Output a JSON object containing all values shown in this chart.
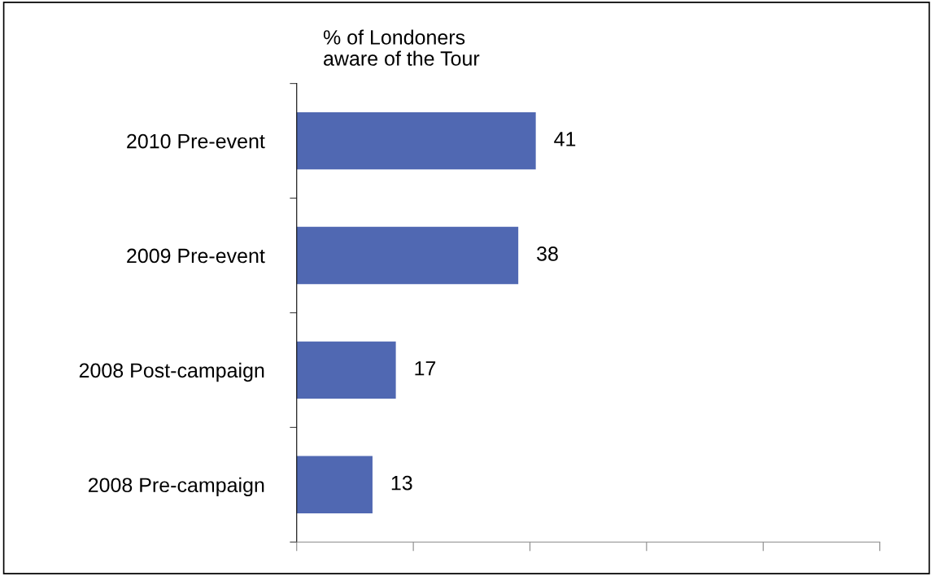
{
  "chart_data": {
    "type": "bar",
    "orientation": "horizontal",
    "title": "% of Londoners\naware of the Tour",
    "categories": [
      "2010 Pre-event",
      "2009 Pre-event",
      "2008 Post-campaign",
      "2008 Pre-campaign"
    ],
    "values": [
      41,
      38,
      17,
      13
    ],
    "color": "#5068b2",
    "data_labels": true,
    "xlim": [
      0,
      100
    ],
    "xticks": [
      {
        "value": 0,
        "label": null
      },
      {
        "value": 20,
        "label": null
      },
      {
        "value": 40,
        "label": null
      },
      {
        "value": 60,
        "label": null
      },
      {
        "value": 80,
        "label": null
      },
      {
        "value": 100,
        "label": null
      }
    ],
    "tick_labels": "y",
    "grid": false,
    "legend": false
  }
}
